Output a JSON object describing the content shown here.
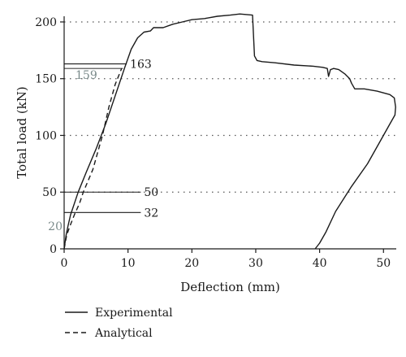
{
  "chart_data": {
    "type": "line",
    "xlabel": "Deflection (mm)",
    "ylabel": "Total load (kN)",
    "xlim": [
      0,
      52
    ],
    "ylim": [
      0,
      205
    ],
    "xticks": [
      0,
      10,
      20,
      30,
      40,
      50
    ],
    "yticks": [
      0,
      50,
      100,
      150,
      200
    ],
    "grid": "horizontal-dotted",
    "legend_placement": "bottom-left",
    "series": [
      {
        "name": "Experimental",
        "style": "solid",
        "points": [
          [
            0,
            0
          ],
          [
            0.3,
            12
          ],
          [
            0.6,
            20
          ],
          [
            1.0,
            30
          ],
          [
            1.6,
            40
          ],
          [
            2.2,
            50
          ],
          [
            3.5,
            68
          ],
          [
            5.0,
            88
          ],
          [
            6.5,
            110
          ],
          [
            8.0,
            135
          ],
          [
            9.5,
            160
          ],
          [
            10.5,
            176
          ],
          [
            11.5,
            186
          ],
          [
            12.5,
            191
          ],
          [
            13.5,
            192
          ],
          [
            14.0,
            195
          ],
          [
            15.5,
            195
          ],
          [
            17.0,
            198
          ],
          [
            18.5,
            200
          ],
          [
            20.0,
            202
          ],
          [
            22.0,
            203
          ],
          [
            24.0,
            205
          ],
          [
            26.0,
            206
          ],
          [
            27.5,
            207
          ],
          [
            29.5,
            206
          ],
          [
            29.8,
            170
          ],
          [
            30.2,
            166
          ],
          [
            31.0,
            165
          ],
          [
            33.0,
            164
          ],
          [
            36.0,
            162
          ],
          [
            39.0,
            161
          ],
          [
            40.5,
            160
          ],
          [
            41.2,
            159
          ],
          [
            41.4,
            152
          ],
          [
            41.7,
            158
          ],
          [
            42.2,
            159
          ],
          [
            43.0,
            158
          ],
          [
            44.0,
            154
          ],
          [
            44.7,
            150
          ],
          [
            45.0,
            146
          ],
          [
            45.5,
            141
          ],
          [
            46.0,
            141
          ],
          [
            47.0,
            141
          ],
          [
            49.0,
            139
          ],
          [
            51.0,
            136
          ],
          [
            51.7,
            133
          ],
          [
            51.9,
            125
          ],
          [
            51.8,
            118
          ],
          [
            51.0,
            110
          ],
          [
            49.5,
            95
          ],
          [
            47.5,
            75
          ],
          [
            45.0,
            55
          ],
          [
            42.5,
            33
          ],
          [
            41.0,
            15
          ],
          [
            40.0,
            5
          ],
          [
            39.3,
            0
          ]
        ]
      },
      {
        "name": "Analytical",
        "style": "dashed",
        "points": [
          [
            0,
            0
          ],
          [
            0.4,
            12
          ],
          [
            0.9,
            20
          ],
          [
            1.6,
            30
          ],
          [
            2.4,
            40
          ],
          [
            3.0,
            50
          ],
          [
            4.5,
            70
          ],
          [
            6.0,
            100
          ],
          [
            7.0,
            125
          ],
          [
            8.0,
            145
          ],
          [
            9.0,
            159
          ]
        ]
      }
    ],
    "annotations": [
      {
        "label": "163",
        "y": 163,
        "x_end": 9.8,
        "color": "black"
      },
      {
        "label": "159",
        "y": 159,
        "x_end": 9.2,
        "color": "gray"
      },
      {
        "label": "50",
        "y": 50,
        "x_end": 12,
        "color": "black"
      },
      {
        "label": "32",
        "y": 32,
        "x_end": 12,
        "color": "black"
      },
      {
        "label": "20",
        "y": 20,
        "x_end": 0,
        "color": "gray"
      }
    ]
  }
}
